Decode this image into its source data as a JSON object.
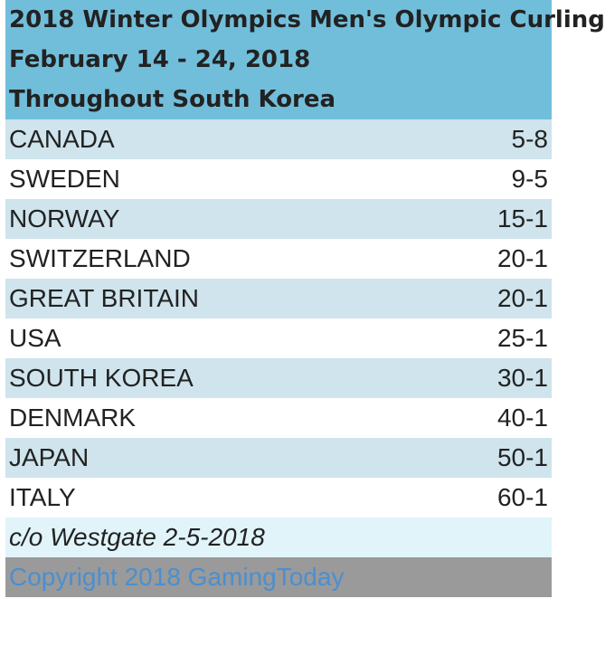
{
  "header": {
    "lines": [
      "2018 Winter Olympics Men's Olympic Curling",
      "February 14 - 24, 2018",
      "Throughout South Korea"
    ]
  },
  "table": {
    "rows": [
      [
        "CANADA",
        "5-8"
      ],
      [
        "SWEDEN",
        "9-5"
      ],
      [
        "NORWAY",
        "15-1"
      ],
      [
        "SWITZERLAND",
        "20-1"
      ],
      [
        "GREAT BRITAIN",
        "20-1"
      ],
      [
        "USA",
        "25-1"
      ],
      [
        "SOUTH KOREA",
        "30-1"
      ],
      [
        "DENMARK",
        "40-1"
      ],
      [
        "JAPAN",
        "50-1"
      ],
      [
        "ITALY",
        "60-1"
      ]
    ]
  },
  "note": "c/o Westgate 2-5-2018",
  "copyright": "Copyright 2018 GamingToday"
}
